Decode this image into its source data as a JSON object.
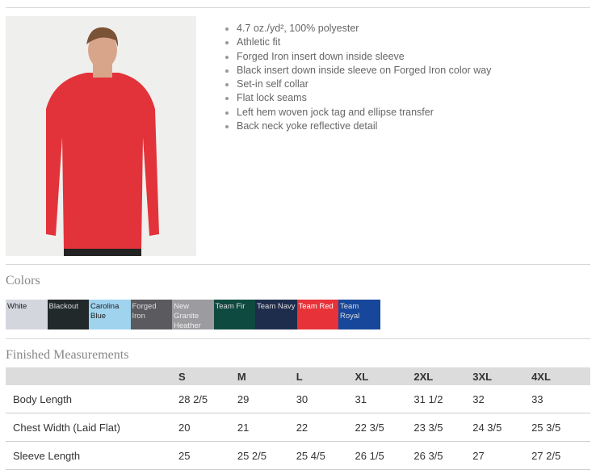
{
  "product": {
    "image_alt": "Model wearing Team Red long sleeve shirt"
  },
  "features": [
    "4.7 oz./yd², 100% polyester",
    "Athletic fit",
    "Forged Iron insert down inside sleeve",
    "Black insert down inside sleeve on Forged Iron color way",
    "Set-in self collar",
    "Flat lock seams",
    "Left hem woven jock tag and ellipse transfer",
    "Back neck yoke reflective detail"
  ],
  "colors": {
    "title": "Colors",
    "items": [
      {
        "name": "White",
        "hex": "#d4d6de",
        "text": "#222"
      },
      {
        "name": "Blackout",
        "hex": "#22292b",
        "text": "#ddd"
      },
      {
        "name": "Carolina Blue",
        "hex": "#9fd3ee",
        "text": "#222"
      },
      {
        "name": "Forged Iron",
        "hex": "#5b5a5e",
        "text": "#ddd"
      },
      {
        "name": "New Granite Heather",
        "hex": "#9c9b9f",
        "text": "#eee"
      },
      {
        "name": "Team Fir",
        "hex": "#0f4a40",
        "text": "#ddd"
      },
      {
        "name": "Team Navy",
        "hex": "#1f2d4d",
        "text": "#ddd"
      },
      {
        "name": "Team Red",
        "hex": "#e63238",
        "text": "#fff"
      },
      {
        "name": "Team Royal",
        "hex": "#17479a",
        "text": "#ddd"
      }
    ]
  },
  "measurements": {
    "title": "Finished Measurements",
    "sizes": [
      "S",
      "M",
      "L",
      "XL",
      "2XL",
      "3XL",
      "4XL"
    ],
    "rows": [
      {
        "label": "Body Length",
        "values": [
          "28 2/5",
          "29",
          "30",
          "31",
          "31 1/2",
          "32",
          "33"
        ]
      },
      {
        "label": "Chest Width (Laid Flat)",
        "values": [
          "20",
          "21",
          "22",
          "22 3/5",
          "23 3/5",
          "24 3/5",
          "25 3/5"
        ]
      },
      {
        "label": "Sleeve Length",
        "values": [
          "25",
          "25 2/5",
          "25 4/5",
          "26 1/5",
          "26 3/5",
          "27",
          "27 2/5"
        ]
      }
    ]
  }
}
